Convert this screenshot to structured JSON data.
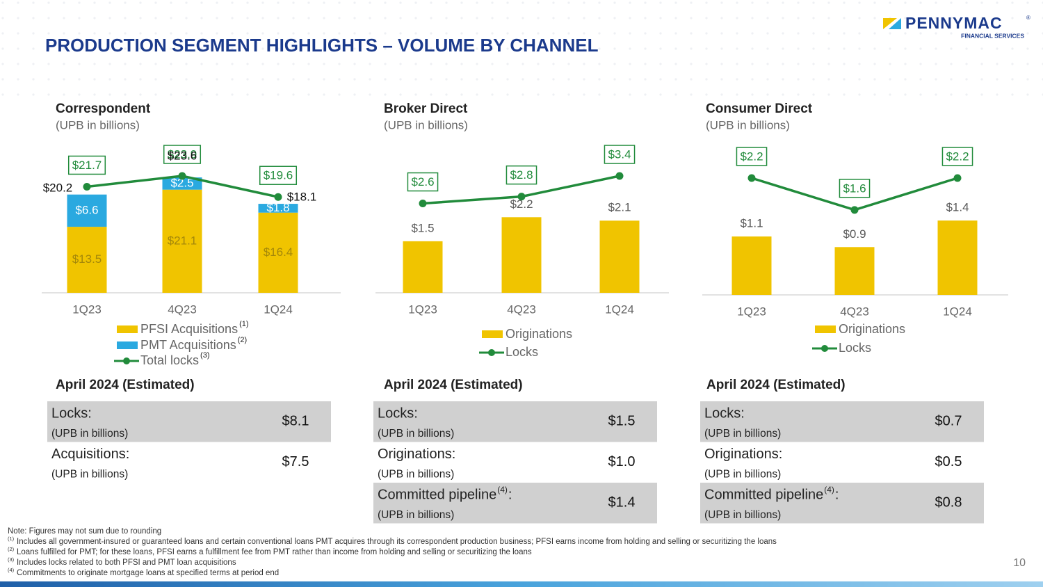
{
  "header": {
    "title": "PRODUCTION SEGMENT HIGHLIGHTS – VOLUME BY CHANNEL",
    "logo": "PENNYMAC",
    "logo_mark": "®",
    "logo_sub": "FINANCIAL SERVICES"
  },
  "chart_data": [
    {
      "type": "stacked_bar_line",
      "title": "Correspondent",
      "subtitle": "(UPB in billions)",
      "categories": [
        "1Q23",
        "4Q23",
        "1Q24"
      ],
      "series": [
        {
          "name": "PFSI Acquisitions",
          "footnote": "(1)",
          "kind": "bar",
          "color": "#f0c400",
          "label_color": "#a3870a",
          "values": [
            13.5,
            21.1,
            16.4
          ],
          "value_labels": [
            "$13.5",
            "$21.1",
            "$16.4"
          ]
        },
        {
          "name": "PMT Acquisitions",
          "footnote": "(2)",
          "kind": "bar",
          "color": "#2aa9e0",
          "label_color": "#ffffff",
          "values": [
            6.6,
            2.5,
            1.8
          ],
          "value_labels": [
            "$6.6",
            "$2.5",
            "$1.8"
          ]
        },
        {
          "name": "Total locks",
          "footnote": "(3)",
          "kind": "line",
          "color": "#218b3b",
          "values": [
            21.7,
            23.9,
            19.6
          ],
          "value_labels": [
            "$21.7",
            "$23.9",
            "$19.6"
          ]
        }
      ],
      "totals": [
        20.2,
        23.6,
        18.1
      ],
      "total_labels": [
        "$20.2",
        "$23.6",
        "$18.1"
      ]
    },
    {
      "type": "bar_line",
      "title": "Broker Direct",
      "subtitle": "(UPB in billions)",
      "categories": [
        "1Q23",
        "4Q23",
        "1Q24"
      ],
      "series": [
        {
          "name": "Originations",
          "kind": "bar",
          "color": "#f0c400",
          "label_color": "#595959",
          "values": [
            1.5,
            2.2,
            2.1
          ],
          "value_labels": [
            "$1.5",
            "$2.2",
            "$2.1"
          ]
        },
        {
          "name": "Locks",
          "kind": "line",
          "color": "#218b3b",
          "values": [
            2.6,
            2.8,
            3.4
          ],
          "value_labels": [
            "$2.6",
            "$2.8",
            "$3.4"
          ]
        }
      ]
    },
    {
      "type": "bar_line",
      "title": "Consumer Direct",
      "subtitle": "(UPB in billions)",
      "categories": [
        "1Q23",
        "4Q23",
        "1Q24"
      ],
      "series": [
        {
          "name": "Originations",
          "kind": "bar",
          "color": "#f0c400",
          "label_color": "#595959",
          "values": [
            1.1,
            0.9,
            1.4
          ],
          "value_labels": [
            "$1.1",
            "$0.9",
            "$1.4"
          ]
        },
        {
          "name": "Locks",
          "kind": "line",
          "color": "#218b3b",
          "values": [
            2.2,
            1.6,
            2.2
          ],
          "value_labels": [
            "$2.2",
            "$1.6",
            "$2.2"
          ]
        }
      ]
    }
  ],
  "tables": [
    {
      "title": "April 2024 (Estimated)",
      "rows": [
        {
          "label": "Locks:",
          "sub": "(UPB in billions)",
          "value": "$8.1"
        },
        {
          "label": "Acquisitions:",
          "sub": "(UPB in billions)",
          "value": "$7.5"
        }
      ]
    },
    {
      "title": "April 2024 (Estimated)",
      "rows": [
        {
          "label": "Locks:",
          "sub": "(UPB in billions)",
          "value": "$1.5"
        },
        {
          "label": "Originations:",
          "sub": "(UPB in billions)",
          "value": "$1.0"
        },
        {
          "label": "Committed pipeline",
          "sup": "(4)",
          "label_end": ":",
          "sub": "(UPB in billions)",
          "value": "$1.4"
        }
      ]
    },
    {
      "title": "April 2024 (Estimated)",
      "rows": [
        {
          "label": "Locks:",
          "sub": "(UPB in billions)",
          "value": "$0.7"
        },
        {
          "label": "Originations:",
          "sub": "(UPB in billions)",
          "value": "$0.5"
        },
        {
          "label": "Committed pipeline",
          "sup": "(4)",
          "label_end": ":",
          "sub": "(UPB in billions)",
          "value": "$0.8"
        }
      ]
    }
  ],
  "notes": {
    "intro": "Note: Figures may not sum due to rounding",
    "items": [
      {
        "mark": "(1)",
        "text": "Includes all government-insured or guaranteed loans and certain conventional loans PMT acquires through its correspondent production business; PFSI earns income from holding and selling or securitizing the loans"
      },
      {
        "mark": "(2)",
        "text": "Loans fulfilled for PMT; for these loans, PFSI earns a fulfillment fee from PMT rather than income from holding and selling or securitizing the loans"
      },
      {
        "mark": "(3)",
        "text": "Includes locks related to both PFSI and PMT loan acquisitions"
      },
      {
        "mark": "(4)",
        "text": "Commitments to originate mortgage loans at specified terms at period end"
      }
    ]
  },
  "page_number": "10"
}
